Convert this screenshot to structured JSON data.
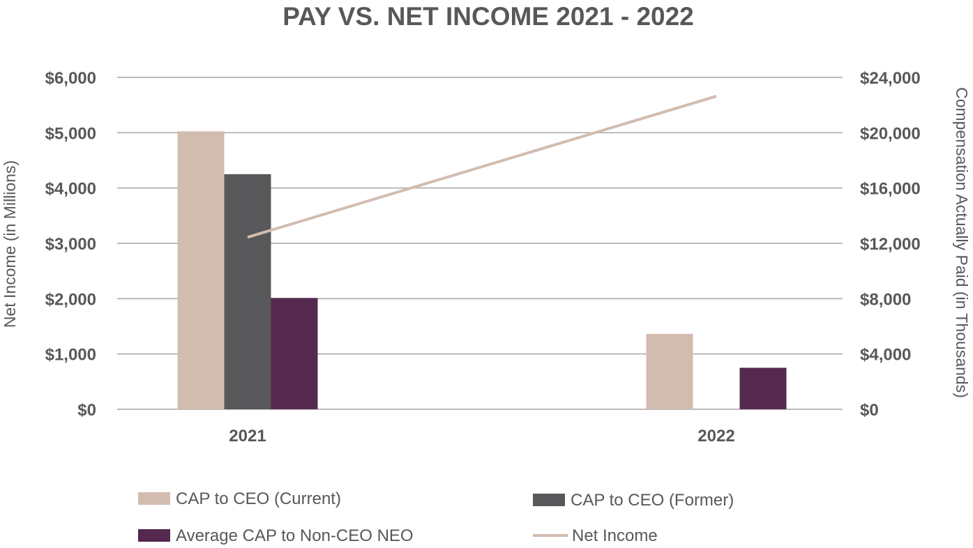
{
  "chart_data": {
    "type": "bar",
    "title": "PAY VS. NET INCOME 2021 - 2022",
    "categories": [
      "2021",
      "2022"
    ],
    "y_left": {
      "label": "Net Income (in Millions)",
      "ylim": [
        0,
        6000
      ],
      "ticks": [
        0,
        1000,
        2000,
        3000,
        4000,
        5000,
        6000
      ],
      "tick_labels": [
        "$0",
        "$1,000",
        "$2,000",
        "$3,000",
        "$4,000",
        "$5,000",
        "$6,000"
      ]
    },
    "y_right": {
      "label": "Compensation Actually Paid (in Thousands)",
      "ylim": [
        0,
        24000
      ],
      "ticks": [
        0,
        4000,
        8000,
        12000,
        16000,
        20000,
        24000
      ],
      "tick_labels": [
        "$0",
        "$4,000",
        "$8,000",
        "$12,000",
        "$16,000",
        "$20,000",
        "$24,000"
      ]
    },
    "series": [
      {
        "name": "CAP to CEO (Current)",
        "type": "bar",
        "axis": "right",
        "color": "#d2bcb0",
        "values": [
          20100,
          5450
        ]
      },
      {
        "name": "CAP to CEO (Former)",
        "type": "bar",
        "axis": "right",
        "color": "#58585a",
        "values": [
          17000,
          null
        ]
      },
      {
        "name": "Average CAP to Non-CEO NEO",
        "type": "bar",
        "axis": "right",
        "color": "#55284e",
        "values": [
          8050,
          3000
        ]
      },
      {
        "name": "Net Income",
        "type": "line",
        "axis": "left",
        "color": "#d2bcb0",
        "values": [
          3110,
          5660
        ]
      }
    ],
    "legend": {
      "placement": "bottom",
      "items": [
        "CAP to CEO (Current)",
        "CAP to CEO (Former)",
        "Average CAP to Non-CEO NEO",
        "Net Income"
      ]
    },
    "grid": true
  }
}
